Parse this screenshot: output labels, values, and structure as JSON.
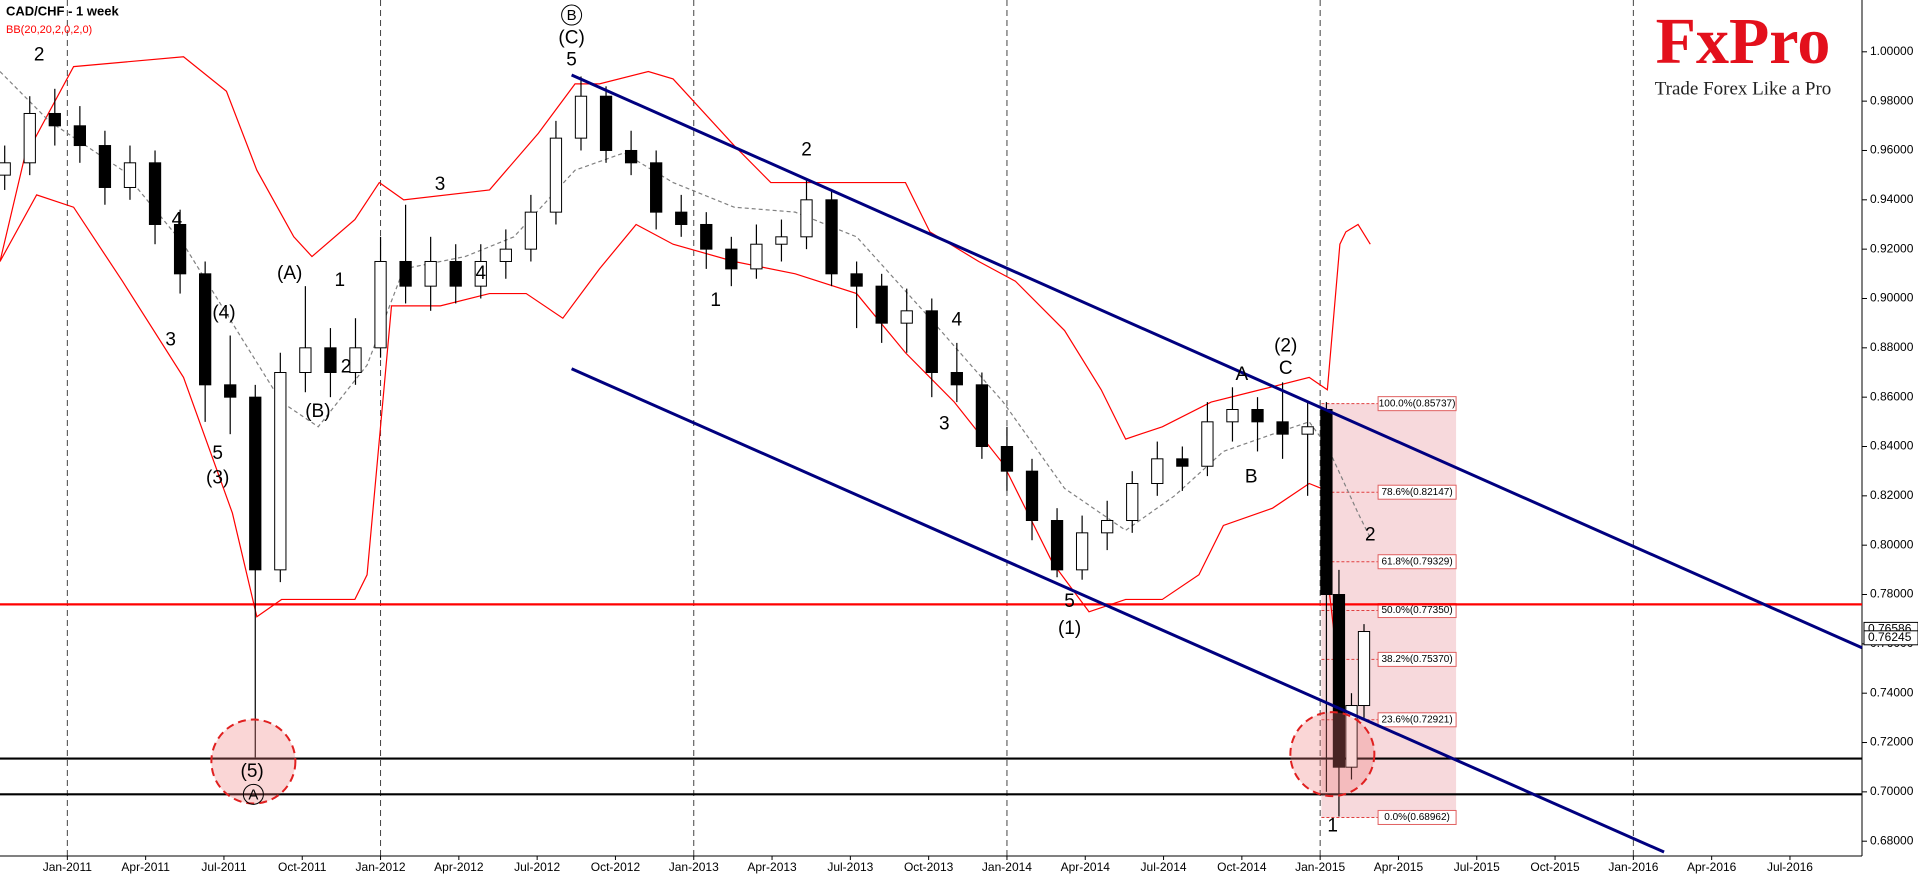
{
  "chart_data": {
    "type": "candlestick",
    "title": "CAD/CHF - 1 week",
    "indicator": "BB(20,20,2,0,2,0)",
    "logo": "FxPro",
    "tagline": "Trade Forex Like a Pro",
    "xlim": [
      2010.785,
      2016.73
    ],
    "ylim": [
      0.674,
      1.021
    ],
    "xticks": [
      {
        "value": 2011,
        "label": "Jan-2011"
      },
      {
        "value": 2011.25,
        "label": "Apr-2011"
      },
      {
        "value": 2011.5,
        "label": "Jul-2011"
      },
      {
        "value": 2011.75,
        "label": "Oct-2011"
      },
      {
        "value": 2012,
        "label": "Jan-2012"
      },
      {
        "value": 2012.25,
        "label": "Apr-2012"
      },
      {
        "value": 2012.5,
        "label": "Jul-2012"
      },
      {
        "value": 2012.75,
        "label": "Oct-2012"
      },
      {
        "value": 2013,
        "label": "Jan-2013"
      },
      {
        "value": 2013.25,
        "label": "Apr-2013"
      },
      {
        "value": 2013.5,
        "label": "Jul-2013"
      },
      {
        "value": 2013.75,
        "label": "Oct-2013"
      },
      {
        "value": 2014,
        "label": "Jan-2014"
      },
      {
        "value": 2014.25,
        "label": "Apr-2014"
      },
      {
        "value": 2014.5,
        "label": "Jul-2014"
      },
      {
        "value": 2014.75,
        "label": "Oct-2014"
      },
      {
        "value": 2015,
        "label": "Jan-2015"
      },
      {
        "value": 2015.25,
        "label": "Apr-2015"
      },
      {
        "value": 2015.5,
        "label": "Jul-2015"
      },
      {
        "value": 2015.75,
        "label": "Oct-2015"
      },
      {
        "value": 2016,
        "label": "Jan-2016"
      },
      {
        "value": 2016.25,
        "label": "Apr-2016"
      },
      {
        "value": 2016.5,
        "label": "Jul-2016"
      }
    ],
    "yticks": [
      {
        "value": 0.68,
        "label": "0.68000"
      },
      {
        "value": 0.7,
        "label": "0.70000"
      },
      {
        "value": 0.72,
        "label": "0.72000"
      },
      {
        "value": 0.74,
        "label": "0.74000"
      },
      {
        "value": 0.76,
        "label": "0.76000"
      },
      {
        "value": 0.78,
        "label": "0.78000"
      },
      {
        "value": 0.8,
        "label": "0.80000"
      },
      {
        "value": 0.82,
        "label": "0.82000"
      },
      {
        "value": 0.84,
        "label": "0.84000"
      },
      {
        "value": 0.86,
        "label": "0.86000"
      },
      {
        "value": 0.88,
        "label": "0.88000"
      },
      {
        "value": 0.9,
        "label": "0.90000"
      },
      {
        "value": 0.92,
        "label": "0.92000"
      },
      {
        "value": 0.94,
        "label": "0.94000"
      },
      {
        "value": 0.96,
        "label": "0.96000"
      },
      {
        "value": 0.98,
        "label": "0.98000"
      },
      {
        "value": 1.0,
        "label": "1.00000"
      }
    ],
    "candles": {
      "x": [
        2010.8,
        2010.88,
        2010.96,
        2011.04,
        2011.12,
        2011.2,
        2011.28,
        2011.36,
        2011.44,
        2011.52,
        2011.6,
        2011.68,
        2011.76,
        2011.84,
        2011.92,
        2012.0,
        2012.08,
        2012.16,
        2012.24,
        2012.32,
        2012.4,
        2012.48,
        2012.56,
        2012.64,
        2012.72,
        2012.8,
        2012.88,
        2012.96,
        2013.04,
        2013.12,
        2013.2,
        2013.28,
        2013.36,
        2013.44,
        2013.52,
        2013.6,
        2013.68,
        2013.76,
        2013.84,
        2013.92,
        2014.0,
        2014.08,
        2014.16,
        2014.24,
        2014.32,
        2014.4,
        2014.48,
        2014.56,
        2014.64,
        2014.72,
        2014.8,
        2014.88,
        2014.96,
        2015.02,
        2015.06,
        2015.1,
        2015.14
      ],
      "open": [
        0.95,
        0.955,
        0.975,
        0.97,
        0.962,
        0.945,
        0.955,
        0.93,
        0.91,
        0.865,
        0.86,
        0.79,
        0.87,
        0.88,
        0.87,
        0.88,
        0.915,
        0.905,
        0.915,
        0.905,
        0.915,
        0.92,
        0.935,
        0.965,
        0.982,
        0.96,
        0.955,
        0.935,
        0.93,
        0.92,
        0.912,
        0.922,
        0.925,
        0.94,
        0.91,
        0.905,
        0.89,
        0.895,
        0.87,
        0.865,
        0.84,
        0.83,
        0.81,
        0.79,
        0.805,
        0.81,
        0.825,
        0.835,
        0.832,
        0.85,
        0.855,
        0.85,
        0.845,
        0.855,
        0.78,
        0.71,
        0.735
      ],
      "high": [
        0.962,
        0.982,
        0.985,
        0.978,
        0.968,
        0.962,
        0.96,
        0.936,
        0.915,
        0.885,
        0.865,
        0.878,
        0.905,
        0.888,
        0.892,
        0.925,
        0.938,
        0.925,
        0.922,
        0.922,
        0.928,
        0.942,
        0.972,
        0.99,
        0.986,
        0.968,
        0.96,
        0.942,
        0.935,
        0.925,
        0.93,
        0.932,
        0.948,
        0.944,
        0.915,
        0.91,
        0.904,
        0.9,
        0.882,
        0.87,
        0.848,
        0.835,
        0.815,
        0.812,
        0.818,
        0.83,
        0.842,
        0.84,
        0.858,
        0.864,
        0.86,
        0.866,
        0.858,
        0.858,
        0.79,
        0.74,
        0.768
      ],
      "low": [
        0.944,
        0.95,
        0.962,
        0.955,
        0.938,
        0.94,
        0.922,
        0.902,
        0.85,
        0.845,
        0.714,
        0.785,
        0.862,
        0.86,
        0.865,
        0.876,
        0.898,
        0.895,
        0.898,
        0.9,
        0.908,
        0.915,
        0.93,
        0.96,
        0.955,
        0.95,
        0.928,
        0.925,
        0.912,
        0.905,
        0.908,
        0.915,
        0.92,
        0.905,
        0.888,
        0.882,
        0.878,
        0.86,
        0.858,
        0.835,
        0.822,
        0.802,
        0.787,
        0.786,
        0.798,
        0.805,
        0.82,
        0.822,
        0.828,
        0.842,
        0.838,
        0.835,
        0.82,
        0.7,
        0.69,
        0.705,
        0.73
      ],
      "close": [
        0.955,
        0.975,
        0.97,
        0.962,
        0.945,
        0.955,
        0.93,
        0.91,
        0.865,
        0.86,
        0.79,
        0.87,
        0.88,
        0.87,
        0.88,
        0.915,
        0.905,
        0.915,
        0.905,
        0.915,
        0.92,
        0.935,
        0.965,
        0.982,
        0.96,
        0.955,
        0.935,
        0.93,
        0.92,
        0.912,
        0.922,
        0.925,
        0.94,
        0.91,
        0.905,
        0.89,
        0.895,
        0.87,
        0.865,
        0.84,
        0.83,
        0.81,
        0.79,
        0.805,
        0.81,
        0.825,
        0.835,
        0.832,
        0.85,
        0.855,
        0.85,
        0.845,
        0.848,
        0.78,
        0.71,
        0.735,
        0.765
      ],
      "up_color": "#ffffff",
      "down_color": "#000000"
    },
    "bands": [
      {
        "color": "#ff0000",
        "dashed": false,
        "x": [
          2010.785,
          2010.863,
          2011.02,
          2011.371,
          2011.508,
          2011.605,
          2011.723,
          2011.781,
          2011.918,
          2011.996,
          2012.074,
          2012.348,
          2012.504,
          2012.621,
          2012.699,
          2012.855,
          2012.934,
          2013.129,
          2013.246,
          2013.363,
          2013.52,
          2013.676,
          2013.754,
          2013.91,
          2014.027,
          2014.184,
          2014.301,
          2014.379,
          2014.496,
          2014.652,
          2014.809,
          2014.965,
          2015.023,
          2015.063,
          2015.082,
          2015.121,
          2015.16
        ],
        "values": [
          0.915,
          0.957,
          0.994,
          0.998,
          0.984,
          0.952,
          0.925,
          0.917,
          0.932,
          0.947,
          0.94,
          0.944,
          0.967,
          0.987,
          0.987,
          0.992,
          0.989,
          0.962,
          0.947,
          0.947,
          0.947,
          0.947,
          0.927,
          0.915,
          0.907,
          0.887,
          0.863,
          0.843,
          0.848,
          0.858,
          0.863,
          0.868,
          0.863,
          0.922,
          0.927,
          0.93,
          0.922
        ]
      },
      {
        "color": "#808080",
        "dashed": true,
        "x": [
          2010.785,
          2010.941,
          2011.176,
          2011.371,
          2011.566,
          2011.684,
          2011.801,
          2011.957,
          2012.074,
          2012.27,
          2012.426,
          2012.621,
          2012.777,
          2012.934,
          2013.129,
          2013.324,
          2013.52,
          2013.754,
          2013.988,
          2014.184,
          2014.379,
          2014.535,
          2014.691,
          2014.848,
          2014.965,
          2015.023,
          2015.121,
          2015.16
        ],
        "values": [
          0.992,
          0.972,
          0.952,
          0.922,
          0.882,
          0.858,
          0.848,
          0.873,
          0.912,
          0.917,
          0.925,
          0.952,
          0.959,
          0.947,
          0.937,
          0.935,
          0.925,
          0.892,
          0.858,
          0.823,
          0.806,
          0.82,
          0.838,
          0.845,
          0.85,
          0.84,
          0.813,
          0.803
        ]
      },
      {
        "color": "#ff0000",
        "dashed": false,
        "x": [
          2010.785,
          2010.902,
          2011.02,
          2011.176,
          2011.371,
          2011.527,
          2011.605,
          2011.684,
          2011.918,
          2011.957,
          2012.035,
          2012.191,
          2012.348,
          2012.465,
          2012.582,
          2012.699,
          2012.816,
          2012.934,
          2013.129,
          2013.324,
          2013.52,
          2013.676,
          2013.832,
          2013.988,
          2014.145,
          2014.262,
          2014.379,
          2014.496,
          2014.613,
          2014.691,
          2014.848,
          2014.965,
          2015.004,
          2015.023,
          2015.063
        ],
        "values": [
          0.915,
          0.942,
          0.937,
          0.907,
          0.868,
          0.813,
          0.771,
          0.778,
          0.778,
          0.788,
          0.897,
          0.897,
          0.902,
          0.902,
          0.892,
          0.912,
          0.93,
          0.922,
          0.915,
          0.91,
          0.902,
          0.878,
          0.858,
          0.833,
          0.793,
          0.773,
          0.778,
          0.778,
          0.788,
          0.808,
          0.815,
          0.825,
          0.823,
          0.788,
          0.744
        ]
      }
    ],
    "channels": [
      {
        "color": "#00007f",
        "x": [
          2012.61,
          2016.73
        ],
        "y": [
          0.9906,
          0.7584
        ]
      },
      {
        "color": "#00007f",
        "x": [
          2012.61,
          2016.098
        ],
        "y": [
          0.8715,
          0.6756
        ]
      }
    ],
    "hlines": [
      {
        "value": 0.776,
        "color": "#ff0000"
      },
      {
        "value": 0.7135,
        "color": "#000000"
      },
      {
        "value": 0.699,
        "color": "#000000"
      }
    ],
    "fib_x": [
      2015.004,
      2015.434
    ],
    "fib": [
      {
        "value": 0.85737,
        "label": "100.0%(0.85737)"
      },
      {
        "value": 0.82147,
        "label": "78.6%(0.82147)"
      },
      {
        "value": 0.79329,
        "label": "61.8%(0.79329)"
      },
      {
        "value": 0.7735,
        "label": "50.0%(0.77350)"
      },
      {
        "value": 0.7537,
        "label": "38.2%(0.75370)"
      },
      {
        "value": 0.72921,
        "label": "23.6%(0.72921)"
      },
      {
        "value": 0.68962,
        "label": "0.0%(0.68962)"
      }
    ],
    "price_labels": [
      0.76586,
      0.76245
    ],
    "highlights": [
      {
        "x": 2011.594,
        "y": 0.7123
      },
      {
        "x": 2015.039,
        "y": 0.7153
      }
    ],
    "circled": [
      {
        "text": "B",
        "x": 2012.61,
        "y": 1.0149
      },
      {
        "text": "A",
        "x": 2011.594,
        "y": 0.699
      }
    ],
    "annotations": [
      {
        "text": "2",
        "x": 2010.91,
        "y": 0.9985
      },
      {
        "text": "4",
        "x": 2011.35,
        "y": 0.9316
      },
      {
        "text": "3",
        "x": 2011.33,
        "y": 0.883
      },
      {
        "text": "(4)",
        "x": 2011.5,
        "y": 0.894
      },
      {
        "text": "5",
        "x": 2011.48,
        "y": 0.837
      },
      {
        "text": "(3)",
        "x": 2011.48,
        "y": 0.827
      },
      {
        "text": "(5)",
        "x": 2011.59,
        "y": 0.708
      },
      {
        "text": "(A)",
        "x": 2011.71,
        "y": 0.91
      },
      {
        "text": "1",
        "x": 2011.87,
        "y": 0.907
      },
      {
        "text": "2",
        "x": 2011.89,
        "y": 0.872
      },
      {
        "text": "(B)",
        "x": 2011.8,
        "y": 0.854
      },
      {
        "text": "3",
        "x": 2012.19,
        "y": 0.946
      },
      {
        "text": "4",
        "x": 2012.32,
        "y": 0.91
      },
      {
        "text": "5",
        "x": 2012.61,
        "y": 0.9965
      },
      {
        "text": "(C)",
        "x": 2012.61,
        "y": 1.0055
      },
      {
        "text": "2",
        "x": 2013.36,
        "y": 0.96
      },
      {
        "text": "1",
        "x": 2013.07,
        "y": 0.899
      },
      {
        "text": "4",
        "x": 2013.84,
        "y": 0.891
      },
      {
        "text": "3",
        "x": 2013.8,
        "y": 0.849
      },
      {
        "text": "5",
        "x": 2014.2,
        "y": 0.777
      },
      {
        "text": "(1)",
        "x": 2014.2,
        "y": 0.766
      },
      {
        "text": "A",
        "x": 2014.75,
        "y": 0.869
      },
      {
        "text": "(2)",
        "x": 2014.89,
        "y": 0.8805
      },
      {
        "text": "C",
        "x": 2014.89,
        "y": 0.8715
      },
      {
        "text": "B",
        "x": 2014.78,
        "y": 0.8274
      },
      {
        "text": "2",
        "x": 2015.16,
        "y": 0.804
      },
      {
        "text": "1",
        "x": 2015.04,
        "y": 0.686
      }
    ]
  }
}
